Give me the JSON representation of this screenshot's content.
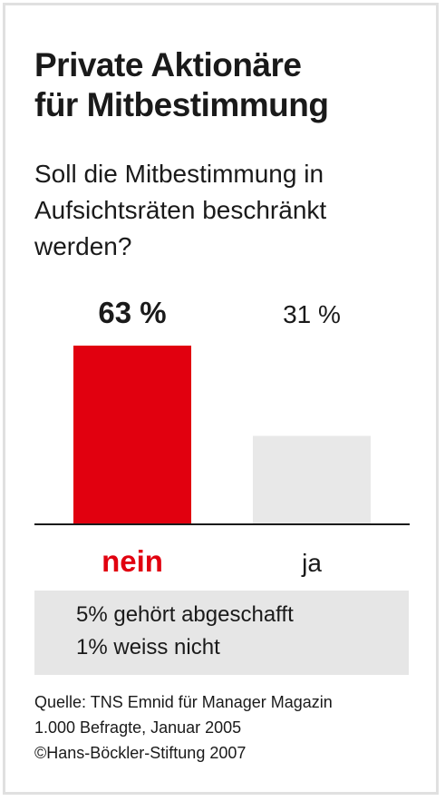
{
  "chart_data": {
    "type": "bar",
    "title": "Private Aktionäre für Mitbestimmung",
    "title_lines": [
      "Private Aktionäre",
      "für Mitbestimmung"
    ],
    "subtitle": "Soll die Mitbestimmung in Aufsichtsräten beschränkt werden?",
    "subtitle_lines": [
      "Soll die Mitbestimmung in",
      "Aufsichtsräten beschränkt",
      "werden?"
    ],
    "categories": [
      "nein",
      "ja"
    ],
    "values": [
      63,
      31
    ],
    "value_labels": [
      "63 %",
      "31 %"
    ],
    "colors": [
      "#e1000f",
      "#e8e8e8"
    ],
    "highlight_color": "#e1000f",
    "ylim": [
      0,
      63
    ],
    "grid": false,
    "notes": [
      "5% gehört abgeschafft",
      "1% weiss nicht"
    ]
  },
  "source_lines": [
    "Quelle: TNS Emnid für Manager Magazin",
    "1.000 Befragte,  Januar 2005",
    "©Hans-Böckler-Stiftung 2007"
  ]
}
